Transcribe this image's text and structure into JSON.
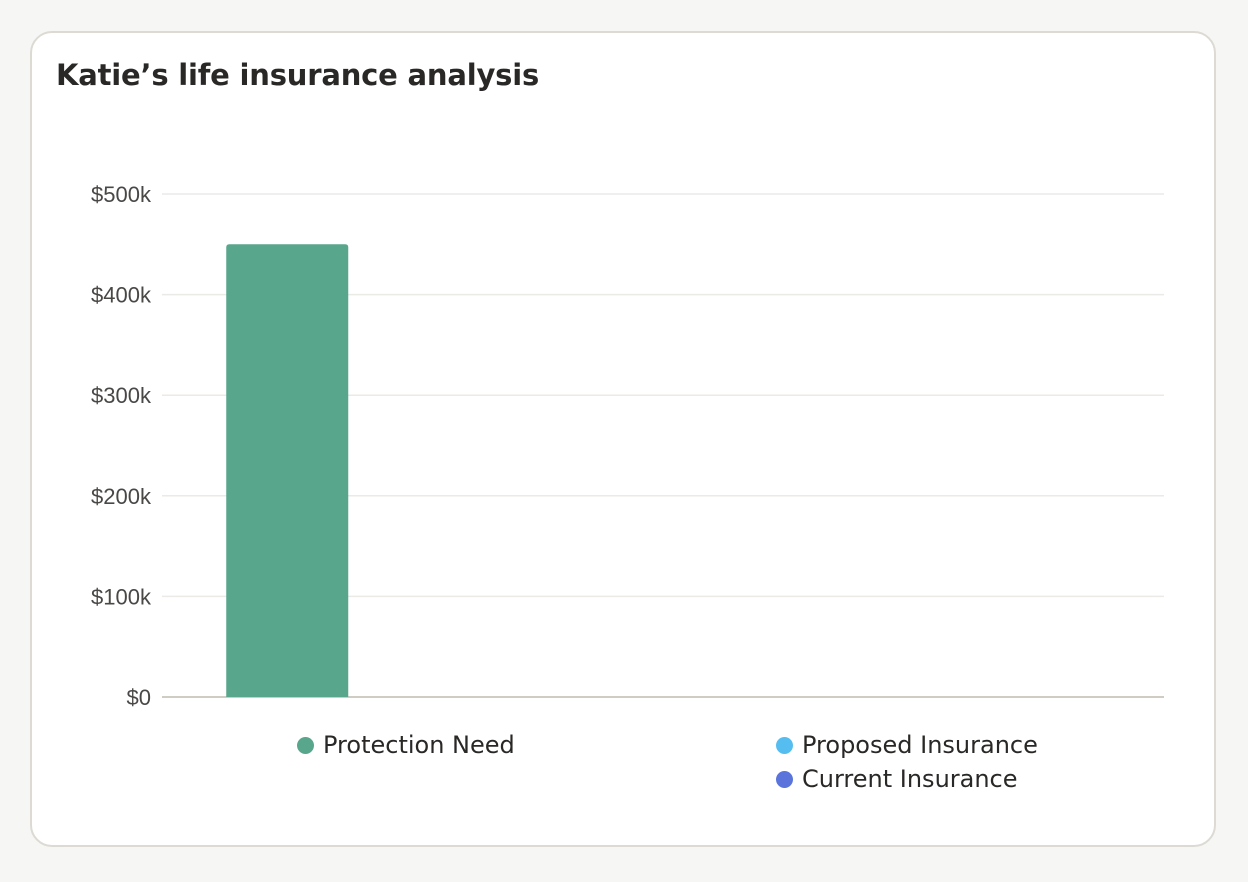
{
  "chart_data": {
    "type": "bar",
    "title": "Katie’s life insurance analysis",
    "xlabel": "",
    "ylabel": "",
    "ylim": [
      0,
      500000
    ],
    "y_ticks": [
      {
        "value": 0,
        "label": "$0"
      },
      {
        "value": 100000,
        "label": "$100k"
      },
      {
        "value": 200000,
        "label": "$200k"
      },
      {
        "value": 300000,
        "label": "$300k"
      },
      {
        "value": 400000,
        "label": "$400k"
      },
      {
        "value": 500000,
        "label": "$500k"
      }
    ],
    "grid": true,
    "legend_position": "bottom",
    "groups": [
      {
        "series": [
          {
            "name": "Protection Need",
            "value": 450000,
            "color": "#58a68c"
          }
        ]
      },
      {
        "series": [
          {
            "name": "Proposed Insurance",
            "value": 0,
            "color": "#56bdf0"
          },
          {
            "name": "Current Insurance",
            "value": 0,
            "color": "#5b74dc"
          }
        ]
      }
    ]
  }
}
